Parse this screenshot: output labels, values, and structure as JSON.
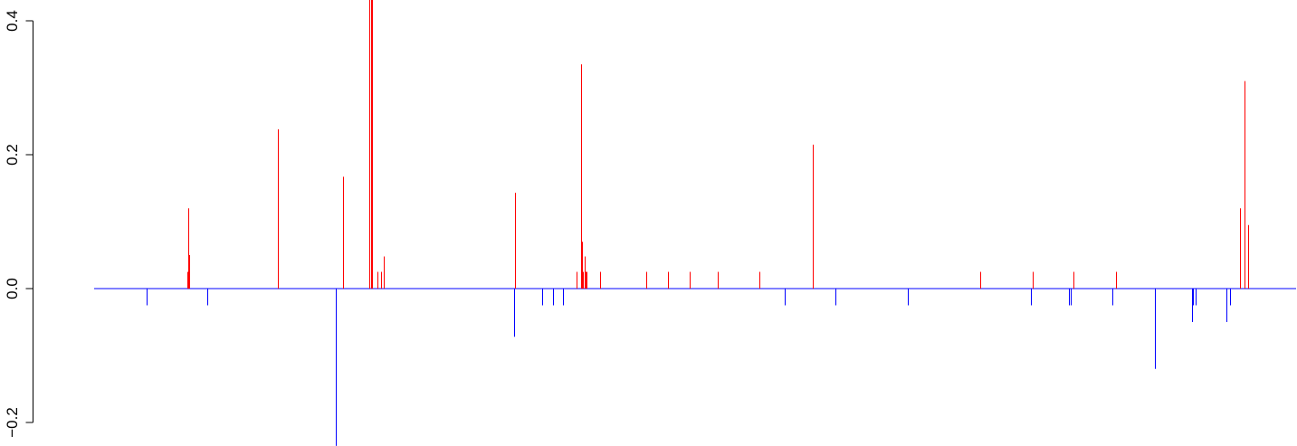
{
  "chart_data": {
    "type": "bar",
    "title": "",
    "xlabel": "",
    "ylabel": "",
    "x_axis_shown": false,
    "ylim": [
      -0.23,
      0.43
    ],
    "yticks": [
      -0.2,
      0.0,
      0.2,
      0.4
    ],
    "ytick_labels": [
      "−0.2",
      "0.0",
      "0.2",
      "0.4"
    ],
    "x_range": [
      0,
      1000
    ],
    "baseline": 0.0,
    "colors": {
      "positive": "#ff0000",
      "negative": "#0000ff",
      "baseline": "#0000ff",
      "axis": "#000000"
    },
    "x": [
      23,
      59,
      60,
      61,
      77,
      140,
      198,
      192,
      222,
      223,
      224,
      229,
      232,
      235,
      351,
      352,
      376,
      386,
      395,
      411,
      412,
      413,
      414,
      415,
      416,
      407,
      428,
      469,
      489,
      508,
      533,
      570,
      593,
      618,
      638,
      703,
      768,
      815,
      847,
      849,
      851,
      886,
      813,
      889,
      924,
      957,
      958,
      960,
      988,
      991,
      1000,
      1004,
      1007
    ],
    "values": [
      -0.025,
      0.025,
      0.12,
      0.05,
      -0.025,
      0.238,
      0.167,
      -0.235,
      0.432,
      0.45,
      0.44,
      0.025,
      0.025,
      0.048,
      -0.072,
      0.143,
      -0.025,
      -0.025,
      -0.025,
      0.335,
      0.07,
      0.025,
      0.048,
      0.025,
      0.025,
      0.025,
      0.025,
      0.025,
      0.025,
      0.025,
      0.025,
      0.025,
      -0.025,
      0.215,
      -0.025,
      -0.025,
      0.025,
      0.025,
      -0.025,
      -0.025,
      0.025,
      -0.025,
      -0.025,
      0.025,
      -0.12,
      -0.05,
      -0.025,
      -0.025,
      -0.05,
      -0.025,
      0.12,
      0.31,
      0.095
    ]
  }
}
